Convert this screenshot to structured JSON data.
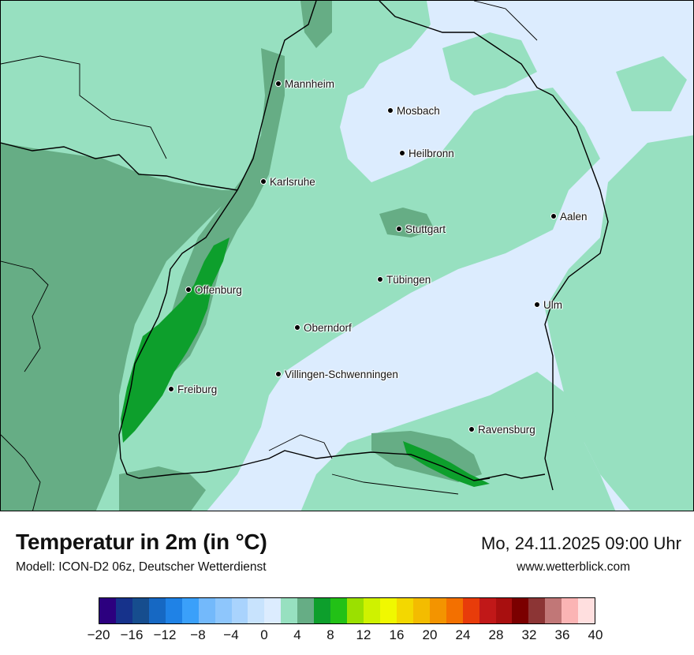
{
  "title": "Temperatur in 2m (in °C)",
  "subtitle": "Modell: ICON-D2 06z, Deutscher Wetterdienst",
  "datetime": "Mo, 24.11.2025 09:00 Uhr",
  "website": "www.wetterblick.com",
  "map": {
    "cities": [
      {
        "name": "Mannheim"
      },
      {
        "name": "Mosbach"
      },
      {
        "name": "Heilbronn"
      },
      {
        "name": "Karlsruhe"
      },
      {
        "name": "Aalen"
      },
      {
        "name": "Stuttgart"
      },
      {
        "name": "Tübingen"
      },
      {
        "name": "Offenburg"
      },
      {
        "name": "Ulm"
      },
      {
        "name": "Oberndorf"
      },
      {
        "name": "Villingen-Schwenningen"
      },
      {
        "name": "Freiburg"
      },
      {
        "name": "Ravensburg"
      }
    ]
  },
  "legend": {
    "tick_labels": [
      "−20",
      "−16",
      "−12",
      "−8",
      "−4",
      "0",
      "4",
      "8",
      "12",
      "16",
      "20",
      "24",
      "28",
      "32",
      "36",
      "40"
    ],
    "colors": [
      "#2c007f",
      "#16328b",
      "#164d8e",
      "#1668c3",
      "#1f82e6",
      "#3aa0fa",
      "#73b9fb",
      "#8ec6fc",
      "#a9d3fd",
      "#c8e3fd",
      "#dcecfe",
      "#97e0c0",
      "#66ad85",
      "#0d9f2c",
      "#22c116",
      "#9be000",
      "#cff200",
      "#f0f800",
      "#f3d800",
      "#f3bc00",
      "#f39400",
      "#f37000",
      "#e83c0a",
      "#c11818",
      "#a80f0f",
      "#7b0000",
      "#8c3535",
      "#c17777",
      "#fbb4b4",
      "#ffdfdf"
    ]
  }
}
